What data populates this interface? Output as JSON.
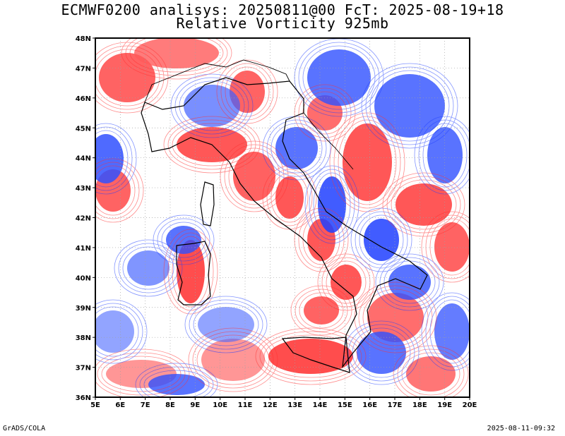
{
  "title": {
    "line1": "ECMWF0200 analisys: 20250811@00 FcT: 2025-08-19+18",
    "line2": "Relative Vorticity 925mb"
  },
  "map": {
    "projection": "lat-lon",
    "lon_range": [
      5,
      20
    ],
    "lat_range": [
      36,
      48
    ],
    "lat_labels": [
      "36N",
      "37N",
      "38N",
      "39N",
      "40N",
      "41N",
      "42N",
      "43N",
      "44N",
      "45N",
      "46N",
      "47N",
      "48N"
    ],
    "lon_labels": [
      "5E",
      "6E",
      "7E",
      "8E",
      "9E",
      "10E",
      "11E",
      "12E",
      "13E",
      "14E",
      "15E",
      "16E",
      "17E",
      "18E",
      "19E",
      "20E"
    ],
    "field": "relative vorticity",
    "positive_color": "#ff3030",
    "negative_color": "#2040ff",
    "coastline_color": "#000000",
    "grid": "dotted"
  },
  "footer": {
    "left": "GrADS/COLA",
    "right": "2025-08-11-09:32"
  }
}
